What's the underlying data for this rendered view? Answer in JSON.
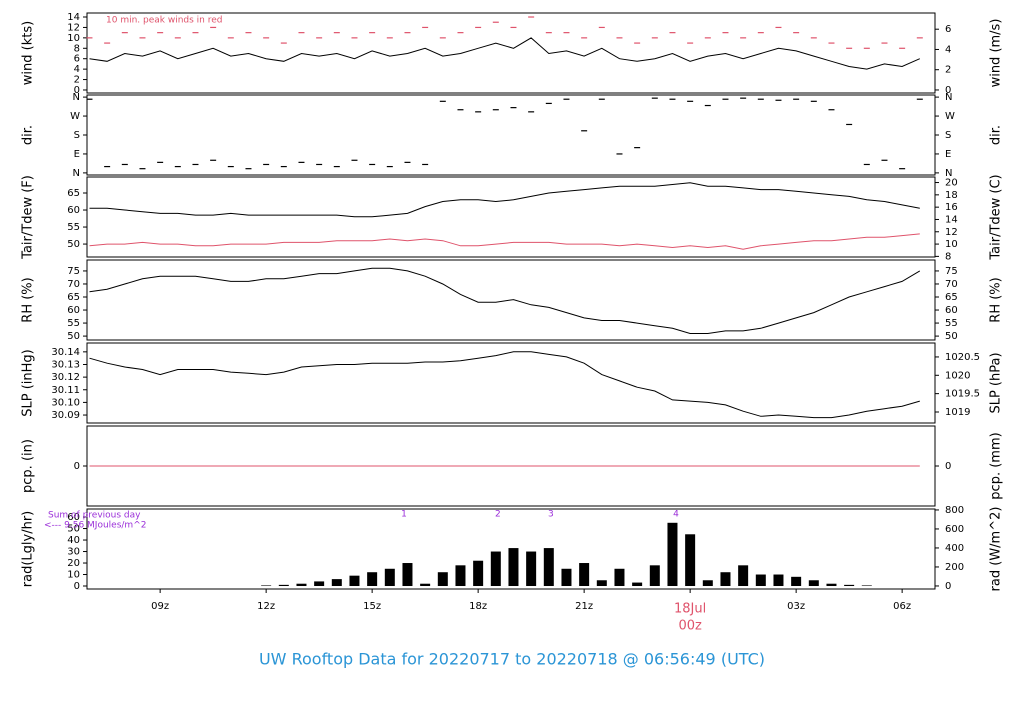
{
  "footer_title": "UW Rooftop Data for 20220717  to  20220718 @ 06:56:49  (UTC)",
  "chart_data": [
    {
      "type": "line",
      "ylabel": "wind (kts)",
      "y2label": "wind (m/s)",
      "xlim": [
        6.93,
        30.93
      ],
      "ylim": [
        -0.58,
        14.77
      ],
      "yticks": [
        0,
        2,
        4,
        6,
        8,
        10,
        12,
        14
      ],
      "y2lim": [
        -0.3,
        7.6
      ],
      "y2ticks": [
        0,
        2,
        4,
        6
      ],
      "annotation": "10 min. peak winds in red",
      "x": [
        7,
        7.5,
        8,
        8.5,
        9,
        9.5,
        10,
        10.5,
        11,
        11.5,
        12,
        12.5,
        13,
        13.5,
        14,
        14.5,
        15,
        15.5,
        16,
        16.5,
        17,
        17.5,
        18,
        18.5,
        19,
        19.5,
        20,
        20.5,
        21,
        21.5,
        22,
        22.5,
        23,
        23.5,
        24,
        24.5,
        25,
        25.5,
        26,
        26.5,
        27,
        27.5,
        28,
        28.5,
        29,
        29.5,
        30,
        30.5
      ],
      "series": [
        {
          "name": "wind",
          "style": "line",
          "color": "#000000",
          "values": [
            6,
            5.5,
            7,
            6.5,
            7.5,
            6,
            7,
            8,
            6.5,
            7,
            6,
            5.5,
            7,
            6.5,
            7,
            6,
            7.5,
            6.5,
            7,
            8,
            6.5,
            7,
            8,
            9,
            8,
            10,
            7,
            7.5,
            6.5,
            8,
            6,
            5.5,
            6,
            7,
            5.5,
            6.5,
            7,
            6,
            7,
            8,
            7.5,
            6.5,
            5.5,
            4.5,
            4,
            5,
            4.5,
            6
          ]
        },
        {
          "name": "peak",
          "style": "dash",
          "color": "#df536b",
          "values": [
            10,
            9,
            11,
            10,
            11,
            10,
            11,
            12,
            10,
            11,
            10,
            9,
            11,
            10,
            11,
            10,
            11,
            10,
            11,
            12,
            10,
            11,
            12,
            13,
            12,
            14,
            11,
            11,
            10,
            12,
            10,
            9,
            10,
            11,
            9,
            10,
            11,
            10,
            11,
            12,
            11,
            10,
            9,
            8,
            8,
            9,
            8,
            10
          ]
        }
      ]
    },
    {
      "type": "scatter",
      "ylabel": "dir.",
      "y2label": "dir.",
      "xlim": [
        6.93,
        30.93
      ],
      "ylim": [
        -10,
        370
      ],
      "yticks": [
        {
          "value": 0,
          "label": "N"
        },
        {
          "value": 90,
          "label": "E"
        },
        {
          "value": 180,
          "label": "S"
        },
        {
          "value": 270,
          "label": "W"
        },
        {
          "value": 360,
          "label": "N"
        }
      ],
      "y2lim": [
        -10,
        370
      ],
      "y2ticks": [
        {
          "value": 0,
          "label": "N"
        },
        {
          "value": 90,
          "label": "E"
        },
        {
          "value": 180,
          "label": "S"
        },
        {
          "value": 270,
          "label": "W"
        },
        {
          "value": 360,
          "label": "N"
        }
      ],
      "x": [
        7,
        7.5,
        8,
        8.5,
        9,
        9.5,
        10,
        10.5,
        11,
        11.5,
        12,
        12.5,
        13,
        13.5,
        14,
        14.5,
        15,
        15.5,
        16,
        16.5,
        17,
        17.5,
        18,
        18.5,
        19,
        19.5,
        20,
        20.5,
        21,
        21.5,
        22,
        22.5,
        23,
        23.5,
        24,
        24.5,
        25,
        25.5,
        26,
        26.5,
        27,
        27.5,
        28,
        28.5,
        29,
        29.5,
        30,
        30.5
      ],
      "series": [
        {
          "name": "dir",
          "style": "dash",
          "color": "#000000",
          "values": [
            350,
            30,
            40,
            20,
            50,
            30,
            40,
            60,
            30,
            20,
            40,
            30,
            50,
            40,
            30,
            60,
            40,
            30,
            50,
            40,
            340,
            300,
            290,
            300,
            310,
            290,
            330,
            350,
            200,
            350,
            90,
            120,
            355,
            350,
            340,
            320,
            350,
            355,
            350,
            345,
            350,
            340,
            300,
            230,
            40,
            60,
            20,
            350
          ]
        }
      ]
    },
    {
      "type": "line",
      "ylabel": "Tair/Tdew (F)",
      "y2label": "Tair/Tdew (C)",
      "xlim": [
        6.93,
        30.93
      ],
      "ylim": [
        46.2,
        69.7
      ],
      "yticks": [
        50,
        55,
        60,
        65
      ],
      "y2lim": [
        7.9,
        20.9
      ],
      "y2ticks": [
        8,
        10,
        12,
        14,
        16,
        18,
        20
      ],
      "x": [
        7,
        7.5,
        8,
        8.5,
        9,
        9.5,
        10,
        10.5,
        11,
        11.5,
        12,
        12.5,
        13,
        13.5,
        14,
        14.5,
        15,
        15.5,
        16,
        16.5,
        17,
        17.5,
        18,
        18.5,
        19,
        19.5,
        20,
        20.5,
        21,
        21.5,
        22,
        22.5,
        23,
        23.5,
        24,
        24.5,
        25,
        25.5,
        26,
        26.5,
        27,
        27.5,
        28,
        28.5,
        29,
        29.5,
        30,
        30.5
      ],
      "series": [
        {
          "name": "Tair",
          "style": "line",
          "color": "#000000",
          "values": [
            60.5,
            60.5,
            60,
            59.5,
            59,
            59,
            58.5,
            58.5,
            59,
            58.5,
            58.5,
            58.5,
            58.5,
            58.5,
            58.5,
            58,
            58,
            58.5,
            59,
            61,
            62.5,
            63,
            63,
            62.5,
            63,
            64,
            65,
            65.5,
            66,
            66.5,
            67,
            67,
            67,
            67.5,
            68,
            67,
            67,
            66.5,
            66,
            66,
            65.5,
            65,
            64.5,
            64,
            63,
            62.5,
            61.5,
            60.5
          ]
        },
        {
          "name": "Tdew",
          "style": "line",
          "color": "#df536b",
          "values": [
            49.5,
            50,
            50,
            50.5,
            50,
            50,
            49.5,
            49.5,
            50,
            50,
            50,
            50.5,
            50.5,
            50.5,
            51,
            51,
            51,
            51.5,
            51,
            51.5,
            51,
            49.5,
            49.5,
            50,
            50.5,
            50.5,
            50.5,
            50,
            50,
            50,
            49.5,
            50,
            49.5,
            49,
            49.5,
            49,
            49.5,
            48.5,
            49.5,
            50,
            50.5,
            51,
            51,
            51.5,
            52,
            52,
            52.5,
            53
          ]
        }
      ]
    },
    {
      "type": "line",
      "ylabel": "RH (%)",
      "y2label": "RH (%)",
      "xlim": [
        6.93,
        30.93
      ],
      "ylim": [
        48.5,
        79.2
      ],
      "yticks": [
        50,
        55,
        60,
        65,
        70,
        75
      ],
      "y2lim": [
        48.5,
        79.2
      ],
      "y2ticks": [
        50,
        55,
        60,
        65,
        70,
        75
      ],
      "x": [
        7,
        7.5,
        8,
        8.5,
        9,
        9.5,
        10,
        10.5,
        11,
        11.5,
        12,
        12.5,
        13,
        13.5,
        14,
        14.5,
        15,
        15.5,
        16,
        16.5,
        17,
        17.5,
        18,
        18.5,
        19,
        19.5,
        20,
        20.5,
        21,
        21.5,
        22,
        22.5,
        23,
        23.5,
        24,
        24.5,
        25,
        25.5,
        26,
        26.5,
        27,
        27.5,
        28,
        28.5,
        29,
        29.5,
        30,
        30.5
      ],
      "series": [
        {
          "name": "RH",
          "style": "line",
          "color": "#000000",
          "values": [
            67,
            68,
            70,
            72,
            73,
            73,
            73,
            72,
            71,
            71,
            72,
            72,
            73,
            74,
            74,
            75,
            76,
            76,
            75,
            73,
            70,
            66,
            63,
            63,
            64,
            62,
            61,
            59,
            57,
            56,
            56,
            55,
            54,
            53,
            51,
            51,
            52,
            52,
            53,
            55,
            57,
            59,
            62,
            65,
            67,
            69,
            71,
            75
          ]
        }
      ]
    },
    {
      "type": "line",
      "ylabel": "SLP (inHg)",
      "y2label": "SLP (hPa)",
      "xlim": [
        6.93,
        30.93
      ],
      "ylim": [
        30.0837,
        30.147
      ],
      "yticks": [
        30.09,
        {
          "value": 30.1,
          "label": "30.10"
        },
        30.11,
        30.12,
        30.13,
        30.14
      ],
      "y2lim": [
        1018.7,
        1020.88
      ],
      "y2ticks": [
        1019,
        1019.5,
        1020,
        1020.5
      ],
      "x": [
        7,
        7.5,
        8,
        8.5,
        9,
        9.5,
        10,
        10.5,
        11,
        11.5,
        12,
        12.5,
        13,
        13.5,
        14,
        14.5,
        15,
        15.5,
        16,
        16.5,
        17,
        17.5,
        18,
        18.5,
        19,
        19.5,
        20,
        20.5,
        21,
        21.5,
        22,
        22.5,
        23,
        23.5,
        24,
        24.5,
        25,
        25.5,
        26,
        26.5,
        27,
        27.5,
        28,
        28.5,
        29,
        29.5,
        30,
        30.5
      ],
      "series": [
        {
          "name": "SLP",
          "style": "line",
          "color": "#000000",
          "values": [
            30.135,
            30.131,
            30.128,
            30.126,
            30.122,
            30.126,
            30.126,
            30.126,
            30.124,
            30.123,
            30.122,
            30.124,
            30.128,
            30.129,
            30.13,
            30.13,
            30.131,
            30.131,
            30.131,
            30.132,
            30.132,
            30.133,
            30.135,
            30.137,
            30.14,
            30.14,
            30.138,
            30.136,
            30.131,
            30.122,
            30.117,
            30.112,
            30.109,
            30.102,
            30.101,
            30.1,
            30.098,
            30.093,
            30.089,
            30.09,
            30.089,
            30.088,
            30.088,
            30.09,
            30.093,
            30.095,
            30.097,
            30.101
          ]
        }
      ]
    },
    {
      "type": "line",
      "ylabel": "pcp. (in)",
      "y2label": "pcp. (mm)",
      "xlim": [
        6.93,
        30.93
      ],
      "ylim": [
        -0.1,
        0.1
      ],
      "yticks": [
        0
      ],
      "y2lim": [
        -2.54,
        2.54
      ],
      "y2ticks": [
        0
      ],
      "x": [
        7,
        7.5,
        8,
        8.5,
        9,
        9.5,
        10,
        10.5,
        11,
        11.5,
        12,
        12.5,
        13,
        13.5,
        14,
        14.5,
        15,
        15.5,
        16,
        16.5,
        17,
        17.5,
        18,
        18.5,
        19,
        19.5,
        20,
        20.5,
        21,
        21.5,
        22,
        22.5,
        23,
        23.5,
        24,
        24.5,
        25,
        25.5,
        26,
        26.5,
        27,
        27.5,
        28,
        28.5,
        29,
        29.5,
        30,
        30.5
      ],
      "series": [
        {
          "name": "pcp",
          "style": "line",
          "color": "#df536b",
          "values": [
            0,
            0,
            0,
            0,
            0,
            0,
            0,
            0,
            0,
            0,
            0,
            0,
            0,
            0,
            0,
            0,
            0,
            0,
            0,
            0,
            0,
            0,
            0,
            0,
            0,
            0,
            0,
            0,
            0,
            0,
            0,
            0,
            0,
            0,
            0,
            0,
            0,
            0,
            0,
            0,
            0,
            0,
            0,
            0,
            0,
            0,
            0,
            0
          ]
        }
      ]
    },
    {
      "type": "bar",
      "ylabel": "rad(Lgly/hr)",
      "y2label": "rad (W/m^2)",
      "xlim": [
        6.93,
        30.93
      ],
      "ylim": [
        -2.6,
        67
      ],
      "yticks": [
        0,
        10,
        20,
        30,
        40,
        50,
        60
      ],
      "y2lim": [
        -32,
        810
      ],
      "y2ticks": [
        0,
        200,
        400,
        600,
        800
      ],
      "xticks": [
        {
          "value": 9,
          "label": "09z"
        },
        {
          "value": 12,
          "label": "12z"
        },
        {
          "value": 15,
          "label": "15z"
        },
        {
          "value": 18,
          "label": "18z"
        },
        {
          "value": 21,
          "label": "21z"
        },
        {
          "value": 24,
          "label": "00z"
        },
        {
          "value": 27,
          "label": "03z"
        },
        {
          "value": 30,
          "label": "06z"
        }
      ],
      "date_label": "18Jul",
      "sum_label": "Sum of previous day",
      "sum_value": "<--- 9.56 MJoules/m^2",
      "markers": [
        {
          "x": 15.9,
          "label": "1"
        },
        {
          "x": 18.56,
          "label": "2"
        },
        {
          "x": 20.06,
          "label": "3"
        },
        {
          "x": 23.6,
          "label": "4"
        }
      ],
      "x": [
        7,
        7.5,
        8,
        8.5,
        9,
        9.5,
        10,
        10.5,
        11,
        11.5,
        12,
        12.5,
        13,
        13.5,
        14,
        14.5,
        15,
        15.5,
        16,
        16.5,
        17,
        17.5,
        18,
        18.5,
        19,
        19.5,
        20,
        20.5,
        21,
        21.5,
        22,
        22.5,
        23,
        23.5,
        24,
        24.5,
        25,
        25.5,
        26,
        26.5,
        27,
        27.5,
        28,
        28.5,
        29,
        29.5,
        30,
        30.5
      ],
      "series": [
        {
          "name": "rad",
          "style": "bar",
          "color": "#000000",
          "values": [
            0,
            0,
            0,
            0,
            0,
            0,
            0,
            0,
            0,
            0,
            0.5,
            1,
            2,
            4,
            6,
            9,
            12,
            15,
            20,
            2,
            12,
            18,
            22,
            30,
            33,
            30,
            33,
            15,
            20,
            5,
            15,
            3,
            18,
            55,
            45,
            5,
            12,
            18,
            10,
            10,
            8,
            5,
            2,
            1,
            0.5,
            0,
            0,
            0
          ]
        }
      ]
    }
  ]
}
